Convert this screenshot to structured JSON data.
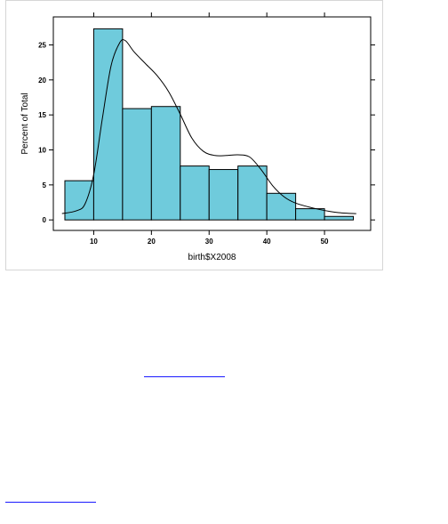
{
  "chart_data": {
    "type": "bar",
    "subtype": "histogram-with-density",
    "xlabel": "birth$X2008",
    "ylabel": "Percent of Total",
    "xlim": [
      3,
      58
    ],
    "ylim": [
      -1.5,
      29
    ],
    "x_ticks": [
      10,
      20,
      30,
      40,
      50
    ],
    "y_ticks": [
      0,
      5,
      10,
      15,
      20,
      25
    ],
    "bins": [
      {
        "x0": 5,
        "x1": 10,
        "value": 5.6
      },
      {
        "x0": 10,
        "x1": 15,
        "value": 27.3
      },
      {
        "x0": 15,
        "x1": 20,
        "value": 15.9
      },
      {
        "x0": 20,
        "x1": 25,
        "value": 16.2
      },
      {
        "x0": 25,
        "x1": 30,
        "value": 7.7
      },
      {
        "x0": 30,
        "x1": 35,
        "value": 7.2
      },
      {
        "x0": 35,
        "x1": 40,
        "value": 7.7
      },
      {
        "x0": 40,
        "x1": 45,
        "value": 3.8
      },
      {
        "x0": 45,
        "x1": 50,
        "value": 1.6
      },
      {
        "x0": 50,
        "x1": 55,
        "value": 0.5
      }
    ],
    "density_curve": {
      "x": [
        4.5,
        7,
        8.5,
        10,
        11.5,
        13,
        14.5,
        15.5,
        17,
        19,
        21,
        23,
        25,
        27,
        29,
        31,
        33,
        35,
        37,
        39,
        41,
        43,
        45,
        48,
        51,
        53,
        55.5
      ],
      "y": [
        0.9,
        1.3,
        2.3,
        6.5,
        14.5,
        22.0,
        25.3,
        25.6,
        24.0,
        22.3,
        20.6,
        18.3,
        15.1,
        11.7,
        9.8,
        9.2,
        9.2,
        9.3,
        9.0,
        7.2,
        4.9,
        3.3,
        2.4,
        1.7,
        1.2,
        1.0,
        0.9
      ]
    },
    "colors": {
      "bar_fill": "#6fcbdc",
      "bar_stroke": "#000000",
      "curve": "#000000"
    },
    "grid": false,
    "legend": "none"
  },
  "links": {
    "link_1_color": "#1a1aff",
    "link_2_color": "#1a1aff"
  }
}
